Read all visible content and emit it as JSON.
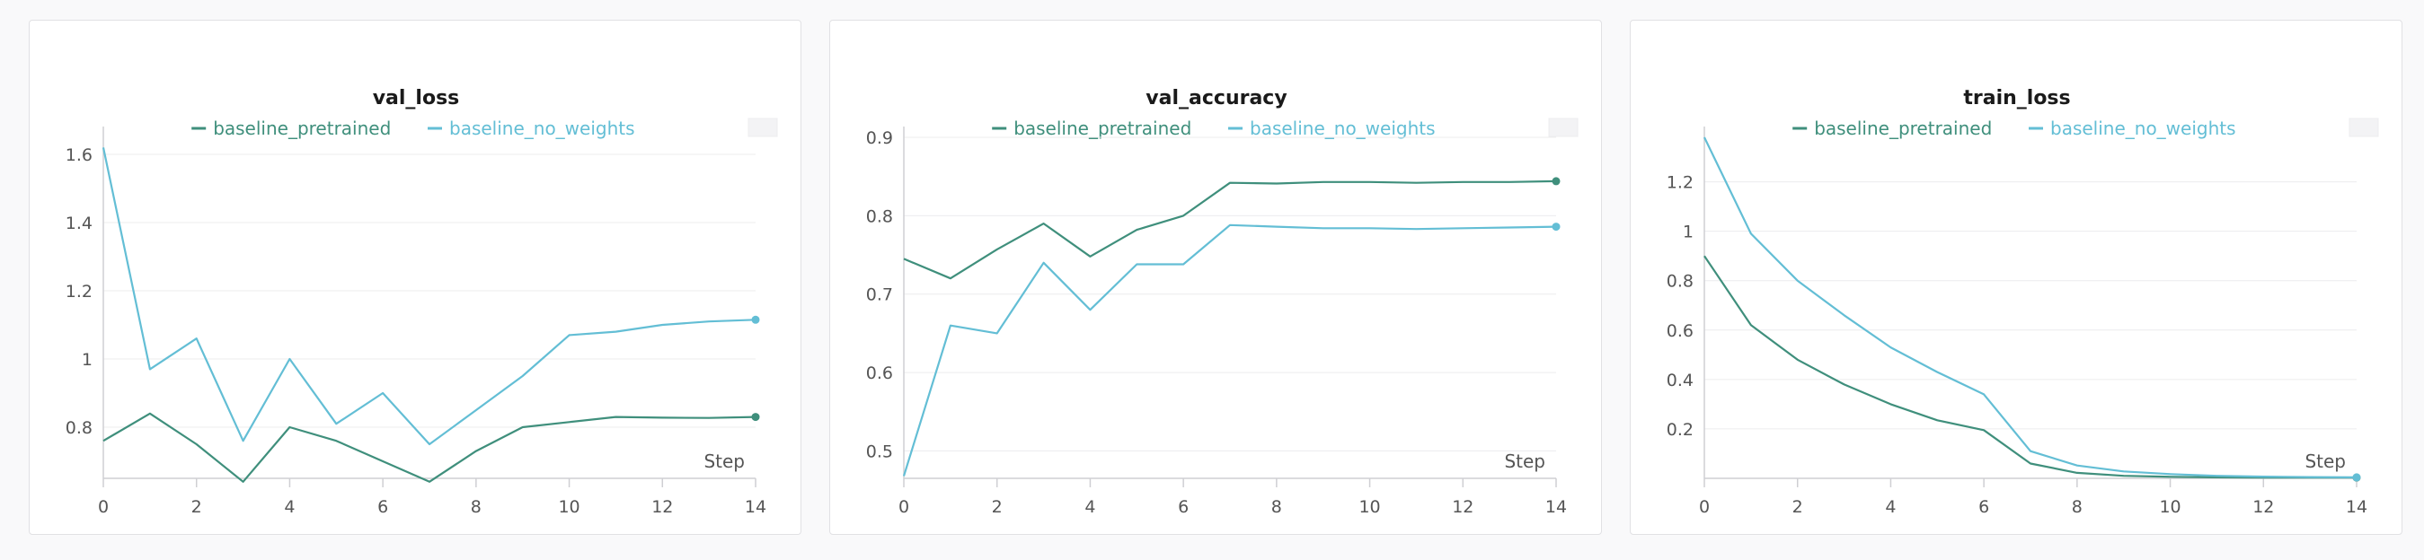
{
  "colors": {
    "baseline_pretrained": "#3f8f7c",
    "baseline_no_weights": "#63bed5"
  },
  "chart_data": [
    {
      "type": "line",
      "title": "val_loss",
      "xlabel": "Step",
      "x": [
        0,
        1,
        2,
        3,
        4,
        5,
        6,
        7,
        8,
        9,
        10,
        11,
        12,
        13,
        14
      ],
      "xlim": [
        0,
        14
      ],
      "ylim": [
        0.65,
        1.65
      ],
      "xticks": [
        0,
        2,
        4,
        6,
        8,
        10,
        12,
        14
      ],
      "yticks": [
        0.8,
        1,
        1.2,
        1.4,
        1.6
      ],
      "ytick_labels": [
        "0.8",
        "1",
        "1.2",
        "1.4",
        "1.6"
      ],
      "grid": true,
      "legend": "top-center",
      "series": [
        {
          "name": "baseline_pretrained",
          "color": "#3f8f7c",
          "values": [
            0.76,
            0.84,
            0.75,
            0.64,
            0.8,
            0.76,
            0.7,
            0.64,
            0.73,
            0.8,
            0.815,
            0.83,
            0.828,
            0.827,
            0.83
          ]
        },
        {
          "name": "baseline_no_weights",
          "color": "#63bed5",
          "values": [
            1.62,
            0.97,
            1.06,
            0.76,
            1.0,
            0.81,
            0.9,
            0.75,
            0.85,
            0.95,
            1.07,
            1.08,
            1.1,
            1.11,
            1.115
          ]
        }
      ]
    },
    {
      "type": "line",
      "title": "val_accuracy",
      "xlabel": "Step",
      "x": [
        0,
        1,
        2,
        3,
        4,
        5,
        6,
        7,
        8,
        9,
        10,
        11,
        12,
        13,
        14
      ],
      "xlim": [
        0,
        14
      ],
      "ylim": [
        0.465,
        0.9
      ],
      "xticks": [
        0,
        2,
        4,
        6,
        8,
        10,
        12,
        14
      ],
      "yticks": [
        0.5,
        0.6,
        0.7,
        0.8,
        0.9
      ],
      "ytick_labels": [
        "0.5",
        "0.6",
        "0.7",
        "0.8",
        "0.9"
      ],
      "grid": true,
      "legend": "top-center",
      "series": [
        {
          "name": "baseline_pretrained",
          "color": "#3f8f7c",
          "values": [
            0.745,
            0.72,
            0.757,
            0.79,
            0.748,
            0.782,
            0.8,
            0.842,
            0.841,
            0.843,
            0.843,
            0.842,
            0.843,
            0.843,
            0.844
          ]
        },
        {
          "name": "baseline_no_weights",
          "color": "#63bed5",
          "values": [
            0.468,
            0.66,
            0.65,
            0.74,
            0.68,
            0.738,
            0.738,
            0.788,
            0.786,
            0.784,
            0.784,
            0.783,
            0.784,
            0.785,
            0.786
          ]
        }
      ]
    },
    {
      "type": "line",
      "title": "train_loss",
      "xlabel": "Step",
      "x": [
        0,
        1,
        2,
        3,
        4,
        5,
        6,
        7,
        8,
        9,
        10,
        11,
        12,
        13,
        14
      ],
      "xlim": [
        0,
        14
      ],
      "ylim": [
        0,
        1.38
      ],
      "xticks": [
        0,
        2,
        4,
        6,
        8,
        10,
        12,
        14
      ],
      "yticks": [
        0.2,
        0.4,
        0.6,
        0.8,
        1,
        1.2
      ],
      "ytick_labels": [
        "0.2",
        "0.4",
        "0.6",
        "0.8",
        "1",
        "1.2"
      ],
      "grid": true,
      "legend": "top-center",
      "series": [
        {
          "name": "baseline_pretrained",
          "color": "#3f8f7c",
          "values": [
            0.9,
            0.62,
            0.48,
            0.38,
            0.3,
            0.235,
            0.195,
            0.06,
            0.022,
            0.01,
            0.006,
            0.004,
            0.003,
            0.003,
            0.003
          ]
        },
        {
          "name": "baseline_no_weights",
          "color": "#63bed5",
          "values": [
            1.38,
            0.99,
            0.8,
            0.66,
            0.53,
            0.43,
            0.34,
            0.11,
            0.052,
            0.028,
            0.017,
            0.01,
            0.007,
            0.005,
            0.004
          ]
        }
      ]
    }
  ]
}
